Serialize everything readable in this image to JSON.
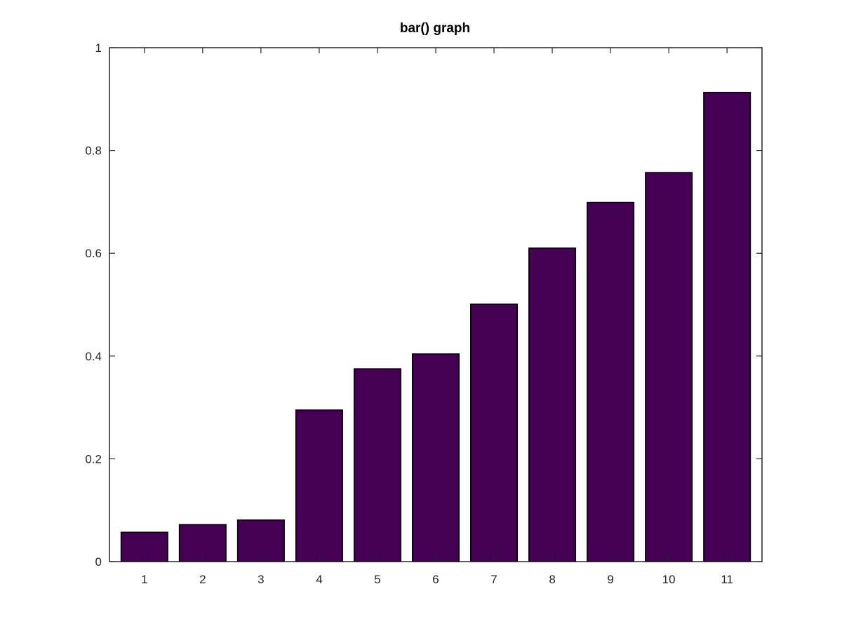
{
  "chart_data": {
    "type": "bar",
    "title": "bar() graph",
    "xlabel": "",
    "ylabel": "",
    "categories": [
      "1",
      "2",
      "3",
      "4",
      "5",
      "6",
      "7",
      "8",
      "9",
      "10",
      "11"
    ],
    "values": [
      0.057,
      0.072,
      0.081,
      0.295,
      0.375,
      0.404,
      0.501,
      0.61,
      0.699,
      0.757,
      0.913
    ],
    "ylim": [
      0,
      1
    ],
    "yticks": [
      0,
      0.2,
      0.4,
      0.6,
      0.8,
      1
    ],
    "ytick_labels": [
      "0",
      "0.2",
      "0.4",
      "0.6",
      "0.8",
      "1"
    ],
    "bar_color": "#440154",
    "edge_color": "#000000",
    "grid": false,
    "legend": "none"
  }
}
